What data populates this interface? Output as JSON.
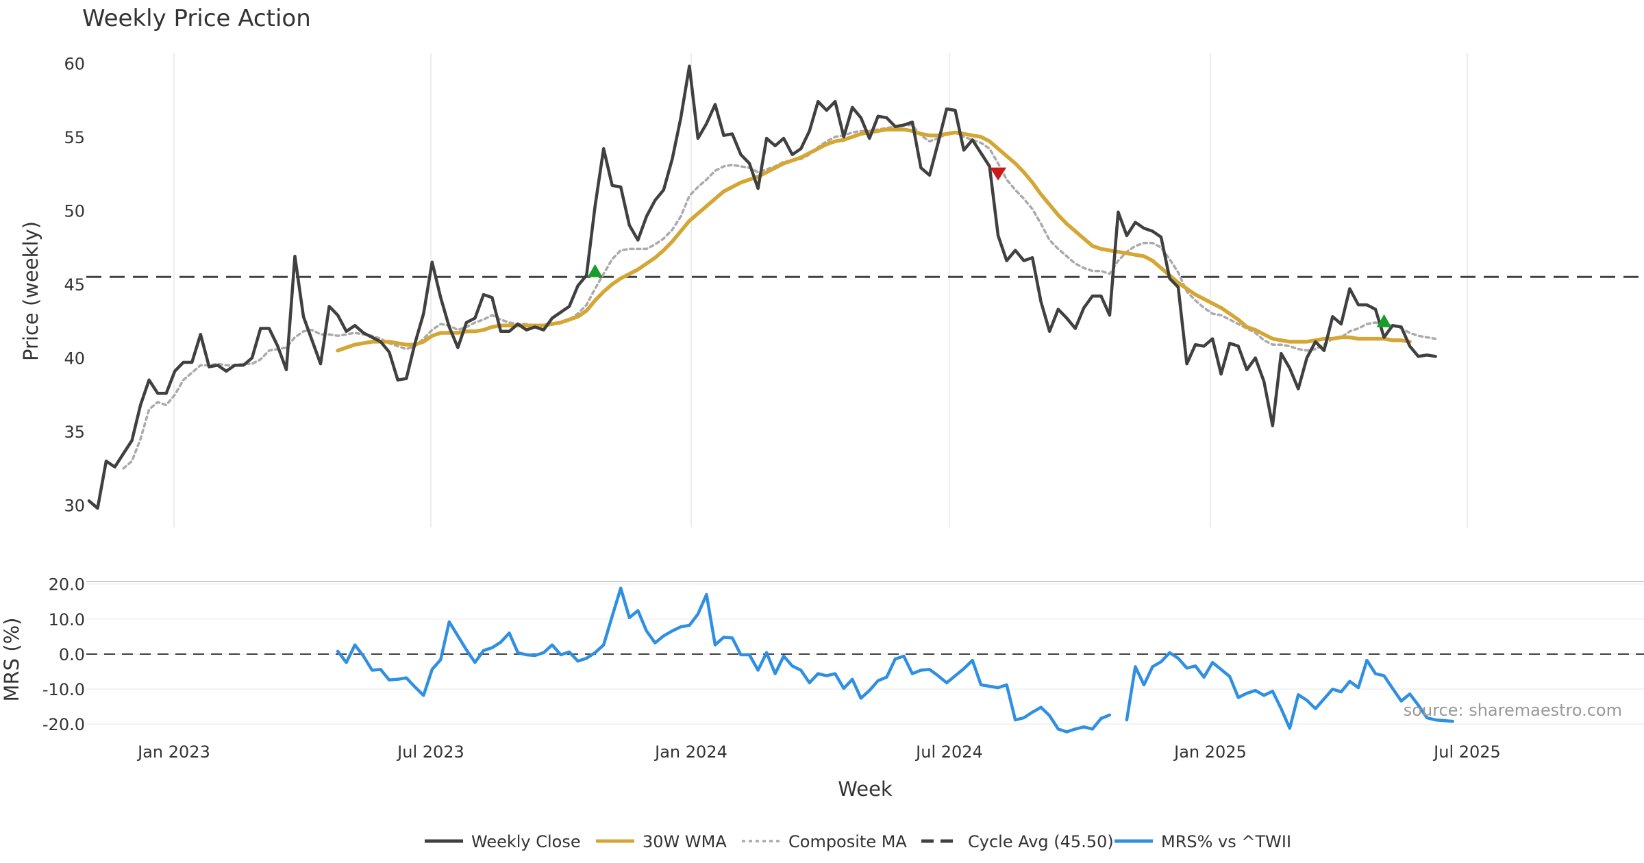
{
  "title": "Weekly Price Action",
  "source": "source: sharemaestro.com",
  "x_axis_label": "Week",
  "x_ticks": [
    "Jan 2023",
    "Jul 2023",
    "Jan 2024",
    "Jul 2024",
    "Jan 2025",
    "Jul 2025"
  ],
  "legend": [
    {
      "label": "Weekly Close",
      "color": "#404040",
      "style": "solid"
    },
    {
      "label": "30W WMA",
      "color": "#d4a634",
      "style": "solid"
    },
    {
      "label": "Composite MA",
      "color": "#aaaaaa",
      "style": "dotted"
    },
    {
      "label": "Cycle Avg (45.50)",
      "color": "#404040",
      "style": "dashed"
    },
    {
      "label": "MRS% vs ^TWII",
      "color": "#2f8fe0",
      "style": "solid"
    }
  ],
  "chart_data": [
    {
      "type": "line",
      "title": "Weekly Price Action",
      "ylabel": "Price (weekly)",
      "xlabel": "",
      "x_start": "2022-11-18",
      "x_interval": "weekly",
      "ylim": [
        28.5,
        61.5
      ],
      "yticks": [
        30,
        35,
        40,
        45,
        50,
        55,
        60
      ],
      "grid": "vertical",
      "reference_line": {
        "label": "Cycle Avg (45.50)",
        "value": 45.5
      },
      "series": [
        {
          "name": "Weekly Close",
          "color": "#404040",
          "values": [
            30.3,
            29.8,
            33.0,
            32.6,
            33.5,
            34.4,
            36.8,
            38.5,
            37.6,
            37.6,
            39.1,
            39.7,
            39.7,
            41.6,
            39.4,
            39.5,
            39.1,
            39.5,
            39.5,
            40.0,
            42.0,
            42.0,
            40.8,
            39.2,
            46.9,
            42.8,
            41.2,
            39.6,
            43.5,
            42.9,
            41.8,
            42.2,
            41.7,
            41.4,
            41.1,
            40.4,
            38.5,
            38.6,
            41.0,
            43.0,
            46.5,
            44.1,
            42.1,
            40.7,
            42.4,
            42.7,
            44.3,
            44.1,
            41.8,
            41.8,
            42.3,
            41.9,
            42.1,
            41.9,
            42.7,
            43.1,
            43.5,
            44.9,
            45.6,
            50.3,
            54.2,
            51.7,
            51.6,
            49.0,
            48.0,
            49.6,
            50.7,
            51.4,
            53.5,
            56.3,
            59.8,
            54.9,
            55.9,
            57.2,
            55.1,
            55.2,
            53.8,
            53.2,
            51.5,
            54.9,
            54.4,
            54.9,
            53.8,
            54.2,
            55.4,
            57.4,
            56.8,
            57.4,
            55.0,
            57.0,
            56.3,
            54.9,
            56.4,
            56.3,
            55.7,
            55.8,
            56.0,
            52.9,
            52.4,
            54.6,
            56.9,
            56.8,
            54.1,
            54.8,
            53.9,
            53.0,
            48.3,
            46.6,
            47.3,
            46.6,
            46.8,
            43.8,
            41.8,
            43.3,
            42.7,
            42.0,
            43.4,
            44.2,
            44.2,
            42.9,
            49.9,
            48.3,
            49.2,
            48.8,
            48.6,
            48.2,
            45.4,
            44.8,
            39.6,
            40.9,
            40.8,
            41.3,
            38.9,
            41.0,
            40.8,
            39.2,
            40.0,
            38.4,
            35.4,
            40.3,
            39.3,
            37.9,
            40.0,
            41.1,
            40.5,
            42.8,
            42.3,
            44.7,
            43.6,
            43.6,
            43.3,
            41.4,
            42.2,
            42.1,
            40.8,
            40.1,
            40.2,
            40.1
          ]
        },
        {
          "name": "30W WMA",
          "color": "#d4a634",
          "values": [
            null,
            null,
            null,
            null,
            null,
            null,
            null,
            null,
            null,
            null,
            null,
            null,
            null,
            null,
            null,
            null,
            null,
            null,
            null,
            null,
            null,
            null,
            null,
            null,
            null,
            null,
            null,
            null,
            null,
            40.5,
            40.7,
            40.9,
            41.0,
            41.1,
            41.1,
            41.1,
            41.0,
            40.9,
            40.9,
            41.1,
            41.5,
            41.7,
            41.7,
            41.7,
            41.8,
            41.8,
            41.9,
            42.1,
            42.2,
            42.2,
            42.2,
            42.2,
            42.2,
            42.2,
            42.3,
            42.4,
            42.6,
            42.8,
            43.2,
            43.9,
            44.5,
            45.0,
            45.4,
            45.7,
            46.0,
            46.4,
            46.8,
            47.3,
            47.9,
            48.6,
            49.3,
            49.8,
            50.3,
            50.8,
            51.3,
            51.6,
            51.9,
            52.1,
            52.3,
            52.6,
            52.9,
            53.2,
            53.4,
            53.6,
            53.9,
            54.2,
            54.5,
            54.7,
            54.8,
            55.0,
            55.2,
            55.3,
            55.4,
            55.5,
            55.5,
            55.5,
            55.4,
            55.2,
            55.1,
            55.1,
            55.2,
            55.3,
            55.2,
            55.1,
            55.0,
            54.7,
            54.2,
            53.7,
            53.2,
            52.6,
            51.9,
            51.1,
            50.4,
            49.7,
            49.1,
            48.6,
            48.1,
            47.6,
            47.4,
            47.3,
            47.2,
            47.1,
            47.0,
            46.9,
            46.6,
            46.1,
            45.6,
            45.1,
            44.7,
            44.3,
            44.0,
            43.7,
            43.4,
            43.0,
            42.6,
            42.1,
            41.9,
            41.6,
            41.3,
            41.2,
            41.1,
            41.1,
            41.1,
            41.2,
            41.3,
            41.3,
            41.4,
            41.4,
            41.3,
            41.3,
            41.3,
            41.3,
            41.2,
            41.2,
            41.1
          ]
        },
        {
          "name": "Composite MA",
          "color": "#aaaaaa",
          "values": [
            null,
            null,
            null,
            null,
            32.5,
            33.0,
            34.5,
            36.5,
            37.0,
            36.8,
            37.5,
            38.5,
            39.0,
            39.5,
            39.5,
            39.6,
            39.5,
            39.5,
            39.6,
            39.6,
            39.9,
            40.5,
            40.6,
            40.7,
            41.4,
            41.8,
            41.9,
            41.6,
            41.6,
            41.5,
            41.6,
            41.7,
            41.6,
            41.5,
            41.3,
            41.0,
            40.8,
            40.6,
            40.8,
            41.3,
            41.9,
            42.3,
            42.2,
            41.9,
            42.1,
            42.4,
            42.6,
            42.9,
            42.6,
            42.4,
            42.3,
            42.3,
            42.2,
            42.2,
            42.3,
            42.4,
            42.6,
            43.0,
            43.6,
            44.7,
            45.7,
            46.7,
            47.3,
            47.4,
            47.4,
            47.4,
            47.7,
            48.1,
            48.7,
            49.6,
            51.0,
            51.6,
            52.1,
            52.7,
            53.0,
            53.1,
            53.0,
            52.9,
            52.6,
            52.8,
            53.0,
            53.3,
            53.4,
            53.5,
            53.8,
            54.3,
            54.7,
            55.0,
            55.1,
            55.3,
            55.4,
            55.4,
            55.5,
            55.6,
            55.7,
            55.8,
            55.8,
            55.1,
            54.7,
            54.9,
            55.2,
            55.3,
            55.0,
            54.8,
            54.6,
            54.2,
            53.2,
            52.1,
            51.4,
            50.8,
            50.1,
            49.1,
            48.0,
            47.4,
            46.9,
            46.4,
            46.1,
            45.9,
            45.9,
            45.7,
            46.6,
            47.2,
            47.6,
            47.8,
            47.8,
            47.5,
            46.7,
            45.8,
            44.5,
            43.9,
            43.4,
            43.0,
            42.9,
            42.6,
            42.3,
            42.0,
            41.7,
            41.2,
            40.9,
            40.9,
            40.8,
            40.6,
            40.5,
            40.6,
            40.9,
            41.3,
            41.4,
            41.8,
            42.0,
            42.3,
            42.4,
            42.2,
            42.2,
            42.0,
            41.7,
            41.5,
            41.4,
            41.3
          ]
        }
      ],
      "markers": [
        {
          "type": "buy",
          "color": "#1a9c2a",
          "x_index": 59,
          "value": 45.9
        },
        {
          "type": "sell",
          "color": "#cc1a1a",
          "x_index": 106,
          "value": 52.5
        },
        {
          "type": "buy",
          "color": "#1a9c2a",
          "x_index": 151,
          "value": 42.5
        }
      ]
    },
    {
      "type": "line",
      "title": "",
      "ylabel": "MRS (%)",
      "xlabel": "Week",
      "ylim": [
        -22.5,
        21.5
      ],
      "yticks": [
        20.0,
        10.0,
        0.0,
        -10.0,
        -20.0
      ],
      "reference_line": {
        "label": "",
        "value": 0.0
      },
      "series": [
        {
          "name": "MRS% vs ^TWII",
          "color": "#2f8fe0",
          "values": [
            null,
            null,
            null,
            null,
            null,
            null,
            null,
            null,
            null,
            null,
            null,
            null,
            null,
            null,
            null,
            null,
            null,
            null,
            null,
            null,
            null,
            null,
            null,
            null,
            null,
            null,
            null,
            null,
            null,
            0.8,
            -2.4,
            2.6,
            -0.6,
            -4.6,
            -4.4,
            -7.4,
            -7.2,
            -6.8,
            -9.4,
            -11.8,
            -4.4,
            -1.6,
            9.2,
            5.2,
            1.2,
            -2.4,
            1.0,
            1.8,
            3.4,
            6.0,
            0.4,
            -0.2,
            -0.4,
            0.4,
            2.6,
            -0.2,
            0.6,
            -2.0,
            -1.2,
            0.4,
            2.6,
            10.8,
            18.8,
            10.4,
            12.4,
            6.6,
            3.2,
            5.2,
            6.6,
            7.8,
            8.2,
            11.4,
            17.0,
            2.6,
            4.8,
            4.6,
            -0.2,
            -0.2,
            -4.6,
            0.4,
            -5.6,
            -0.6,
            -3.4,
            -4.6,
            -8.2,
            -5.6,
            -6.2,
            -5.6,
            -9.8,
            -7.2,
            -12.6,
            -10.4,
            -7.6,
            -6.6,
            -1.4,
            -0.6,
            -5.6,
            -4.6,
            -4.4,
            -6.2,
            -8.2,
            -6.2,
            -4.2,
            -1.8,
            -8.8,
            -9.2,
            -9.6,
            -8.8,
            -18.8,
            -18.2,
            -16.6,
            -15.2,
            -17.6,
            -21.4,
            -22.2,
            -21.4,
            -20.8,
            -21.4,
            -18.4,
            -17.4,
            null,
            -18.8,
            -3.6,
            -8.8,
            -3.6,
            -2.2,
            0.4,
            -1.2,
            -4.0,
            -3.4,
            -6.6,
            -2.4,
            -4.4,
            -6.4,
            -12.4,
            -11.2,
            -10.4,
            -11.8,
            -10.6,
            -15.6,
            -21.2,
            -11.6,
            -13.2,
            -15.6,
            -12.8,
            -10.0,
            -10.8,
            -7.8,
            -9.6,
            -1.8,
            -5.6,
            -6.2,
            -9.8,
            -13.4,
            -11.4,
            -14.6,
            -18.2,
            -18.8,
            -19.0,
            -19.2
          ]
        }
      ]
    }
  ]
}
